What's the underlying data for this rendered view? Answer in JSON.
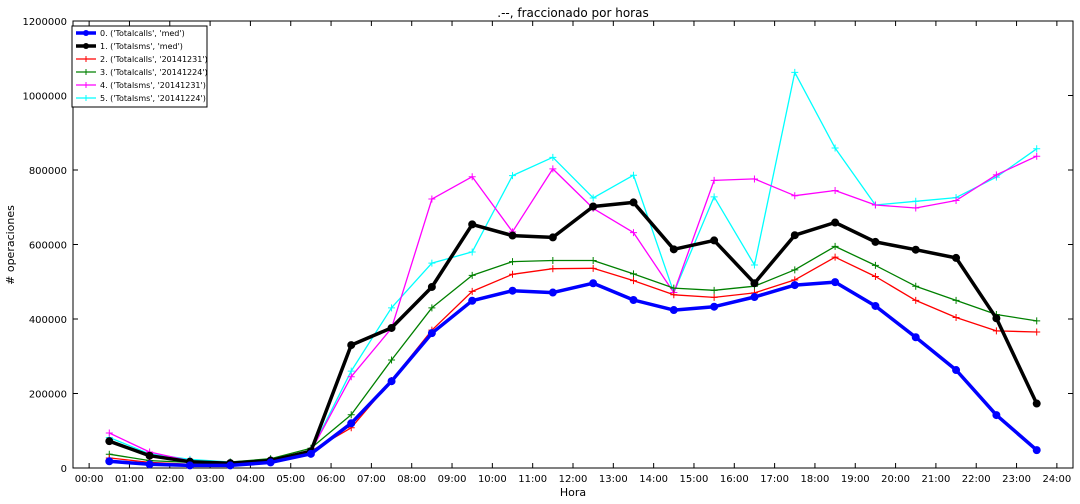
{
  "chart_data": {
    "type": "line",
    "title": ".--, fraccionado por horas",
    "xlabel": "Hora",
    "ylabel": "# operaciones",
    "xlim": [
      -0.4,
      24.4
    ],
    "ylim": [
      0,
      1200000
    ],
    "yticks": [
      0,
      200000,
      400000,
      600000,
      800000,
      1000000,
      1200000
    ],
    "xticks": [
      "00:00",
      "01:00",
      "02:00",
      "03:00",
      "04:00",
      "05:00",
      "06:00",
      "07:00",
      "08:00",
      "09:00",
      "10:00",
      "11:00",
      "12:00",
      "13:00",
      "14:00",
      "15:00",
      "16:00",
      "17:00",
      "18:00",
      "19:00",
      "20:00",
      "21:00",
      "22:00",
      "23:00",
      "24:00"
    ],
    "x": [
      0.5,
      1.5,
      2.5,
      3.5,
      4.5,
      5.5,
      6.5,
      7.5,
      8.5,
      9.5,
      10.5,
      11.5,
      12.5,
      13.5,
      14.5,
      15.5,
      16.5,
      17.5,
      18.5,
      19.5,
      20.5,
      21.5,
      22.5,
      23.5
    ],
    "legend_position": "top-left",
    "grid": false,
    "series": [
      {
        "name": "0. ('Totalcalls', 'med')",
        "color": "#0000ff",
        "marker": "dot",
        "width": 3.5,
        "values": [
          18000,
          10000,
          7000,
          7000,
          15000,
          38000,
          120000,
          233000,
          362000,
          449000,
          476000,
          471000,
          496000,
          451000,
          424000,
          433000,
          459000,
          491000,
          499000,
          435000,
          351000,
          263000,
          142000,
          48000
        ]
      },
      {
        "name": "1. ('Totalsms', 'med')",
        "color": "#000000",
        "marker": "dot",
        "width": 3.5,
        "values": [
          72000,
          33000,
          17000,
          13000,
          20000,
          45000,
          330000,
          376000,
          486000,
          654000,
          624000,
          619000,
          702000,
          713000,
          587000,
          611000,
          496000,
          625000,
          659000,
          607000,
          586000,
          564000,
          402000,
          173000
        ]
      },
      {
        "name": "2. ('Totalcalls', '20141231')",
        "color": "#ff0000",
        "marker": "plus",
        "width": 1.3,
        "values": [
          27000,
          15000,
          10000,
          10000,
          20000,
          45000,
          108000,
          235000,
          370000,
          474000,
          520000,
          535000,
          536000,
          503000,
          465000,
          458000,
          470000,
          505000,
          566000,
          514000,
          450000,
          404000,
          368000,
          365000
        ]
      },
      {
        "name": "3. ('Totalcalls', '20141224')",
        "color": "#008000",
        "marker": "plus",
        "width": 1.3,
        "values": [
          37000,
          20000,
          15000,
          16000,
          25000,
          53000,
          143000,
          290000,
          430000,
          517000,
          554000,
          557000,
          557000,
          521000,
          483000,
          477000,
          488000,
          532000,
          595000,
          544000,
          488000,
          450000,
          412000,
          395000
        ]
      },
      {
        "name": "4. ('Totalsms', '20141231')",
        "color": "#ff00ff",
        "marker": "plus",
        "width": 1.3,
        "values": [
          94000,
          43000,
          19000,
          13000,
          20000,
          45000,
          245000,
          375000,
          722000,
          782000,
          634000,
          803000,
          697000,
          632000,
          471000,
          772000,
          776000,
          731000,
          745000,
          706000,
          698000,
          718000,
          787000,
          837000
        ]
      },
      {
        "name": "5. ('Totalsms', '20141224')",
        "color": "#00ffff",
        "marker": "plus",
        "width": 1.3,
        "values": [
          82000,
          38000,
          23000,
          16000,
          24000,
          45000,
          260000,
          430000,
          550000,
          580000,
          785000,
          834000,
          725000,
          786000,
          471000,
          728000,
          545000,
          1062000,
          859000,
          706000,
          716000,
          726000,
          781000,
          857000
        ]
      }
    ]
  }
}
